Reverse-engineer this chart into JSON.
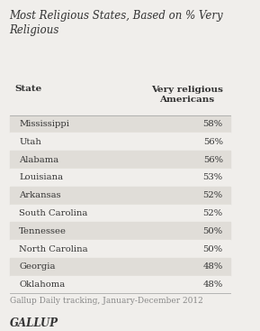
{
  "title": "Most Religious States, Based on % Very\nReligious",
  "col_header_state": "State",
  "col_header_value": "Very religious\nAmericans",
  "states": [
    "Mississippi",
    "Utah",
    "Alabama",
    "Louisiana",
    "Arkansas",
    "South Carolina",
    "Tennessee",
    "North Carolina",
    "Georgia",
    "Oklahoma"
  ],
  "values": [
    "58%",
    "56%",
    "56%",
    "53%",
    "52%",
    "52%",
    "50%",
    "50%",
    "48%",
    "48%"
  ],
  "footer": "Gallup Daily tracking, January-December 2012",
  "brand": "GALLUP",
  "bg_color": "#f0eeeb",
  "row_shaded": "#e0ddd8",
  "row_unshaded": "#f0eeeb",
  "text_color": "#333333",
  "title_color": "#333333",
  "footer_color": "#888888",
  "brand_color": "#333333",
  "line_color": "#aaaaaa"
}
